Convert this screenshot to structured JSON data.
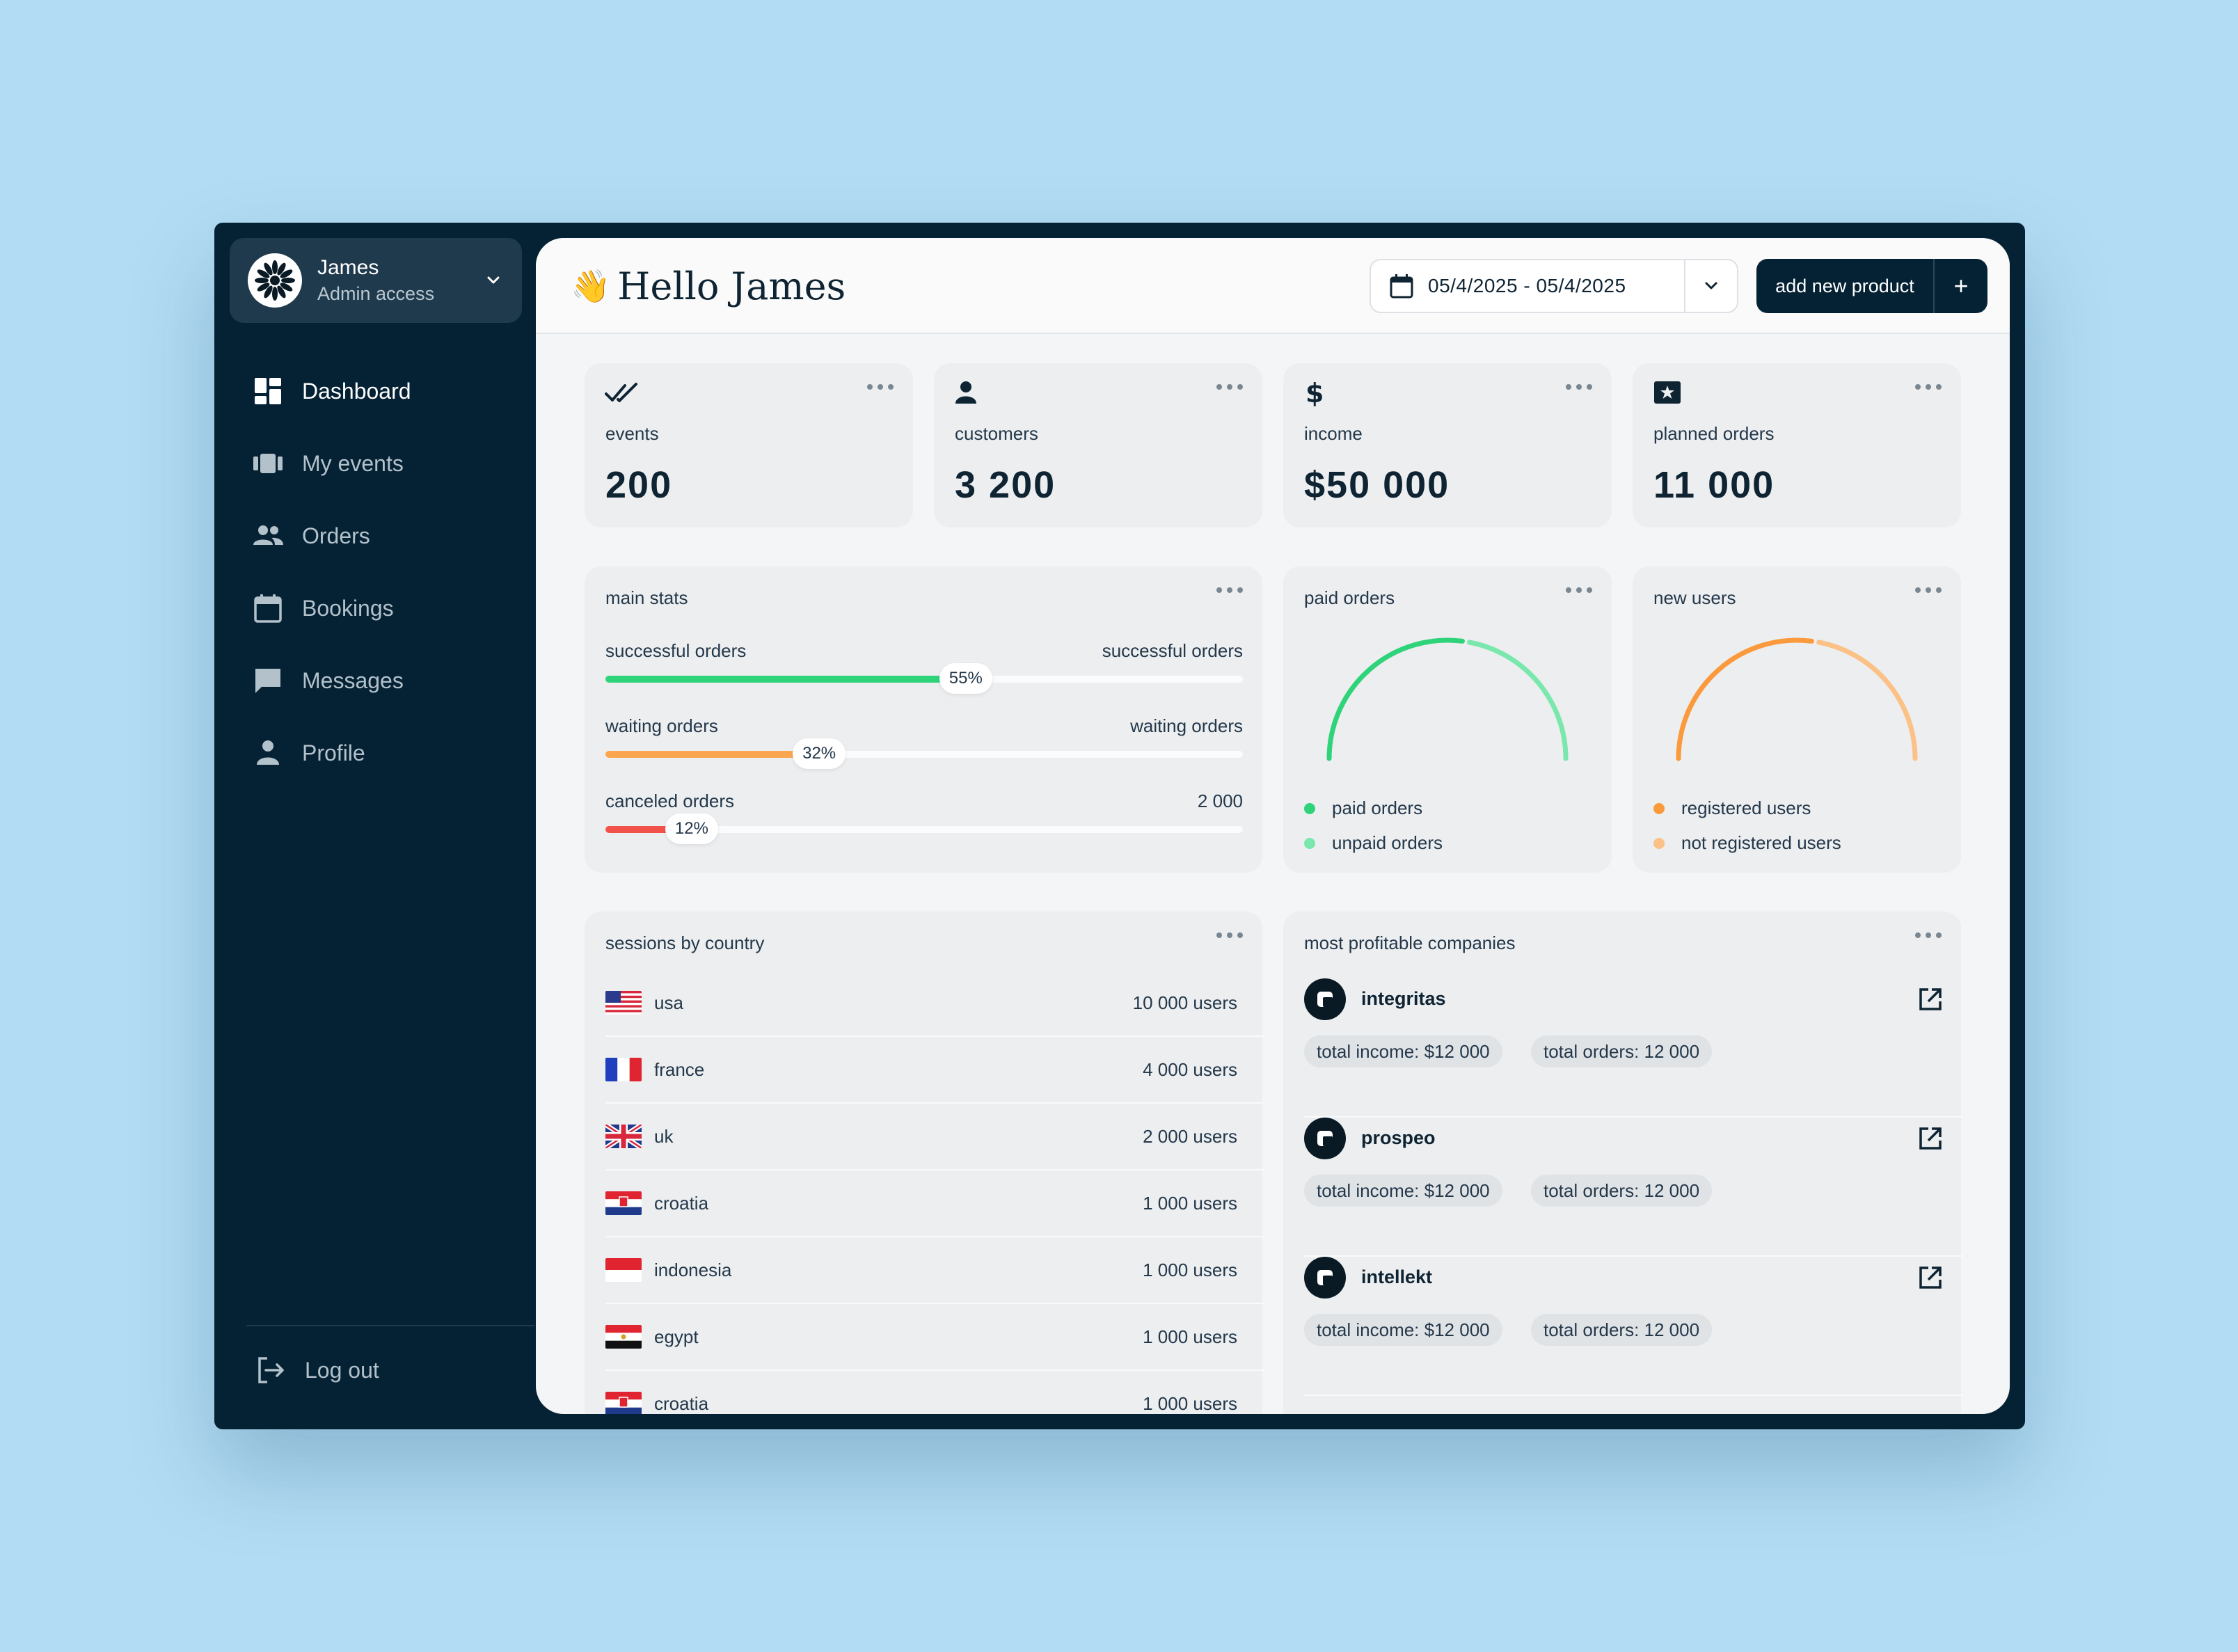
{
  "user": {
    "name": "James",
    "role": "Admin access"
  },
  "nav": [
    {
      "label": "Dashboard",
      "icon": "dashboard-icon",
      "active": true
    },
    {
      "label": "My events",
      "icon": "events-icon"
    },
    {
      "label": "Orders",
      "icon": "people-icon"
    },
    {
      "label": "Bookings",
      "icon": "calendar-icon"
    },
    {
      "label": "Messages",
      "icon": "chat-icon"
    },
    {
      "label": "Profile",
      "icon": "person-icon"
    }
  ],
  "logout_label": "Log out",
  "header": {
    "greeting": "Hello James",
    "date_range": "05/4/2025 - 05/4/2025",
    "add_button": "add new product",
    "add_plus": "+"
  },
  "kpis": [
    {
      "label": "events",
      "value": "200",
      "icon": "double-check-icon"
    },
    {
      "label": "customers",
      "value": "3 200",
      "icon": "user-icon"
    },
    {
      "label": "income",
      "value": "$50 000",
      "icon": "dollar-icon"
    },
    {
      "label": "planned orders",
      "value": "11 000",
      "icon": "ticket-icon"
    }
  ],
  "main_stats": {
    "title": "main stats",
    "rows": [
      {
        "left": "successful orders",
        "right": "successful orders",
        "percent_label": "55%",
        "fraction": 0.55,
        "color": "#2fd37a"
      },
      {
        "left": "waiting orders",
        "right": "waiting orders",
        "percent_label": "32%",
        "fraction": 0.32,
        "color": "#fba64e"
      },
      {
        "left": "canceled orders",
        "right": "2 000",
        "percent_label": "12%",
        "fraction": 0.12,
        "color": "#f1534a"
      }
    ]
  },
  "paid_orders": {
    "title": "paid orders",
    "legend": [
      {
        "label": "paid orders",
        "color": "#2fd37a"
      },
      {
        "label": "unpaid orders",
        "color": "#7ae7ad"
      }
    ],
    "paid_fraction": 0.55
  },
  "new_users": {
    "title": "new users",
    "legend": [
      {
        "label": "registered users",
        "color": "#fb9a3d"
      },
      {
        "label": "not registered users",
        "color": "#fcc187"
      }
    ],
    "registered_fraction": 0.55
  },
  "sessions": {
    "title": "sessions by country",
    "rows": [
      {
        "country": "usa",
        "users": "10 000 users",
        "flag": "usa"
      },
      {
        "country": "france",
        "users": "4 000 users",
        "flag": "france"
      },
      {
        "country": "uk",
        "users": "2 000 users",
        "flag": "uk"
      },
      {
        "country": "croatia",
        "users": "1 000 users",
        "flag": "croatia"
      },
      {
        "country": "indonesia",
        "users": "1 000 users",
        "flag": "indonesia"
      },
      {
        "country": "egypt",
        "users": "1 000 users",
        "flag": "egypt"
      },
      {
        "country": "croatia",
        "users": "1 000 users",
        "flag": "croatia"
      }
    ]
  },
  "companies": {
    "title": "most profitable companies",
    "rows": [
      {
        "name": "integritas",
        "income": "total income: $12 000",
        "orders": "total orders: 12 000"
      },
      {
        "name": "prospeo",
        "income": "total income: $12 000",
        "orders": "total orders: 12 000"
      },
      {
        "name": "intellekt",
        "income": "total income: $12 000",
        "orders": "total orders: 12 000"
      }
    ]
  },
  "colors": {
    "sidebar": "#052234",
    "accent_green": "#2fd37a",
    "accent_orange": "#fba64e",
    "accent_red": "#f1534a"
  }
}
